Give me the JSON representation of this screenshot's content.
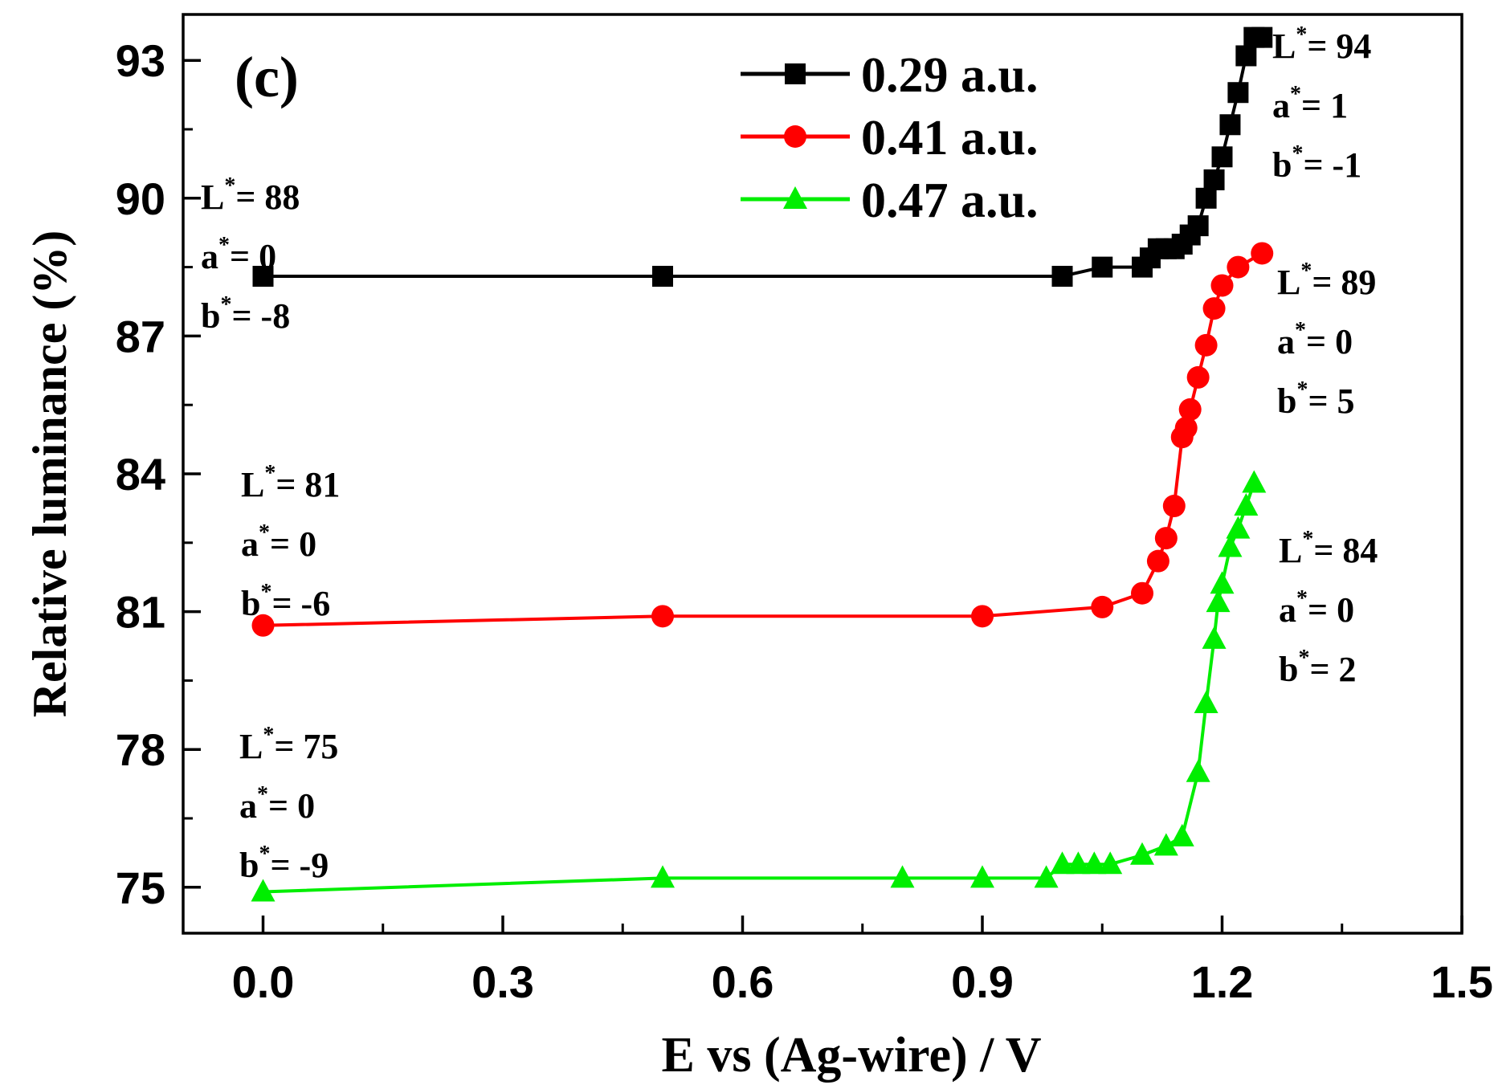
{
  "chart_data": {
    "type": "line",
    "panel_label": "(c)",
    "xlabel": "E vs (Ag-wire) / V",
    "ylabel": "Relative luminance (%)",
    "xlim": [
      -0.1,
      1.5
    ],
    "ylim": [
      74,
      94
    ],
    "x_ticks": [
      0.0,
      0.3,
      0.6,
      0.9,
      1.2,
      1.5
    ],
    "x_tick_labels": [
      "0.0",
      "0.3",
      "0.6",
      "0.9",
      "1.2",
      "1.5"
    ],
    "y_ticks": [
      75,
      78,
      81,
      84,
      87,
      90,
      93
    ],
    "y_tick_labels": [
      "75",
      "78",
      "81",
      "84",
      "87",
      "90",
      "93"
    ],
    "legend_position": "top-center",
    "series": [
      {
        "name": "0.29 a.u.",
        "color": "#000000",
        "marker": "square",
        "x": [
          0.0,
          0.5,
          1.0,
          1.05,
          1.1,
          1.11,
          1.12,
          1.13,
          1.14,
          1.15,
          1.16,
          1.17,
          1.18,
          1.19,
          1.2,
          1.21,
          1.22,
          1.23,
          1.24,
          1.25
        ],
        "y": [
          88.3,
          88.3,
          88.3,
          88.5,
          88.5,
          88.7,
          88.9,
          88.9,
          88.9,
          89.0,
          89.2,
          89.4,
          90.0,
          90.4,
          90.9,
          91.6,
          92.3,
          93.1,
          93.5,
          93.5
        ]
      },
      {
        "name": "0.41 a.u.",
        "color": "#ff0000",
        "marker": "circle",
        "x": [
          0.0,
          0.5,
          0.9,
          1.05,
          1.1,
          1.12,
          1.13,
          1.14,
          1.15,
          1.155,
          1.16,
          1.17,
          1.18,
          1.19,
          1.2,
          1.22,
          1.25
        ],
        "y": [
          80.7,
          80.9,
          80.9,
          81.1,
          81.4,
          82.1,
          82.6,
          83.3,
          84.8,
          85.0,
          85.4,
          86.1,
          86.8,
          87.6,
          88.1,
          88.5,
          88.8
        ]
      },
      {
        "name": "0.47 a.u.",
        "color": "#00ee00",
        "marker": "triangle",
        "x": [
          0.0,
          0.5,
          0.8,
          0.9,
          0.98,
          1.0,
          1.02,
          1.04,
          1.06,
          1.1,
          1.13,
          1.15,
          1.17,
          1.18,
          1.19,
          1.195,
          1.2,
          1.21,
          1.22,
          1.23,
          1.24
        ],
        "y": [
          74.9,
          75.2,
          75.2,
          75.2,
          75.2,
          75.5,
          75.5,
          75.5,
          75.5,
          75.7,
          75.9,
          76.1,
          77.5,
          79.0,
          80.4,
          81.2,
          81.6,
          82.4,
          82.8,
          83.3,
          83.8
        ]
      }
    ],
    "annotations": [
      {
        "id": "ann-black-start",
        "lines": [
          {
            "base": "L",
            "sup": "*",
            "rest": "= 88"
          },
          {
            "base": "a",
            "sup": "*",
            "rest": "= 0"
          },
          {
            "base": "b",
            "sup": "*",
            "rest": "= -8"
          }
        ]
      },
      {
        "id": "ann-black-end",
        "lines": [
          {
            "base": "L",
            "sup": "*",
            "rest": "= 94"
          },
          {
            "base": "a",
            "sup": "*",
            "rest": "= 1"
          },
          {
            "base": "b",
            "sup": "*",
            "rest": "= -1"
          }
        ]
      },
      {
        "id": "ann-red-start",
        "lines": [
          {
            "base": "L",
            "sup": "*",
            "rest": "= 81"
          },
          {
            "base": "a",
            "sup": "*",
            "rest": "= 0"
          },
          {
            "base": "b",
            "sup": "*",
            "rest": "= -6"
          }
        ]
      },
      {
        "id": "ann-red-end",
        "lines": [
          {
            "base": "L",
            "sup": "*",
            "rest": "= 89"
          },
          {
            "base": "a",
            "sup": "*",
            "rest": "= 0"
          },
          {
            "base": "b",
            "sup": "*",
            "rest": "= 5"
          }
        ]
      },
      {
        "id": "ann-green-start",
        "lines": [
          {
            "base": "L",
            "sup": "*",
            "rest": "= 75"
          },
          {
            "base": "a",
            "sup": "*",
            "rest": "= 0"
          },
          {
            "base": "b",
            "sup": "*",
            "rest": "= -9"
          }
        ]
      },
      {
        "id": "ann-green-end",
        "lines": [
          {
            "base": "L",
            "sup": "*",
            "rest": "= 84"
          },
          {
            "base": "a",
            "sup": "*",
            "rest": "= 0"
          },
          {
            "base": "b",
            "sup": "*",
            "rest": "= 2"
          }
        ]
      }
    ]
  }
}
